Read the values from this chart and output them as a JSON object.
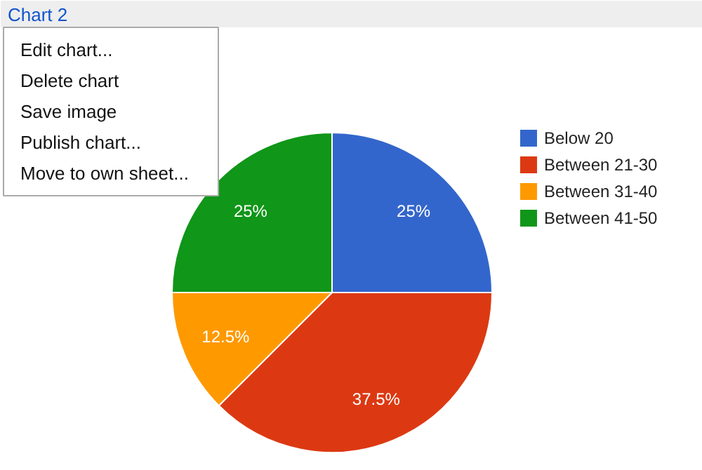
{
  "chart_data": {
    "type": "pie",
    "categories": [
      "Below 20",
      "Between 21-30",
      "Between 31-40",
      "Between 41-50"
    ],
    "values": [
      25,
      37.5,
      12.5,
      25
    ],
    "colors": [
      "#3366cc",
      "#dc3912",
      "#ff9900",
      "#109618"
    ],
    "value_labels": [
      "25%",
      "37.5%",
      "12.5%",
      "25%"
    ],
    "legend": "right",
    "annotations": [
      "Chart 2",
      "Edit chart...",
      "Delete chart",
      "Save image",
      "Publish chart...",
      "Move to own sheet..."
    ]
  }
}
